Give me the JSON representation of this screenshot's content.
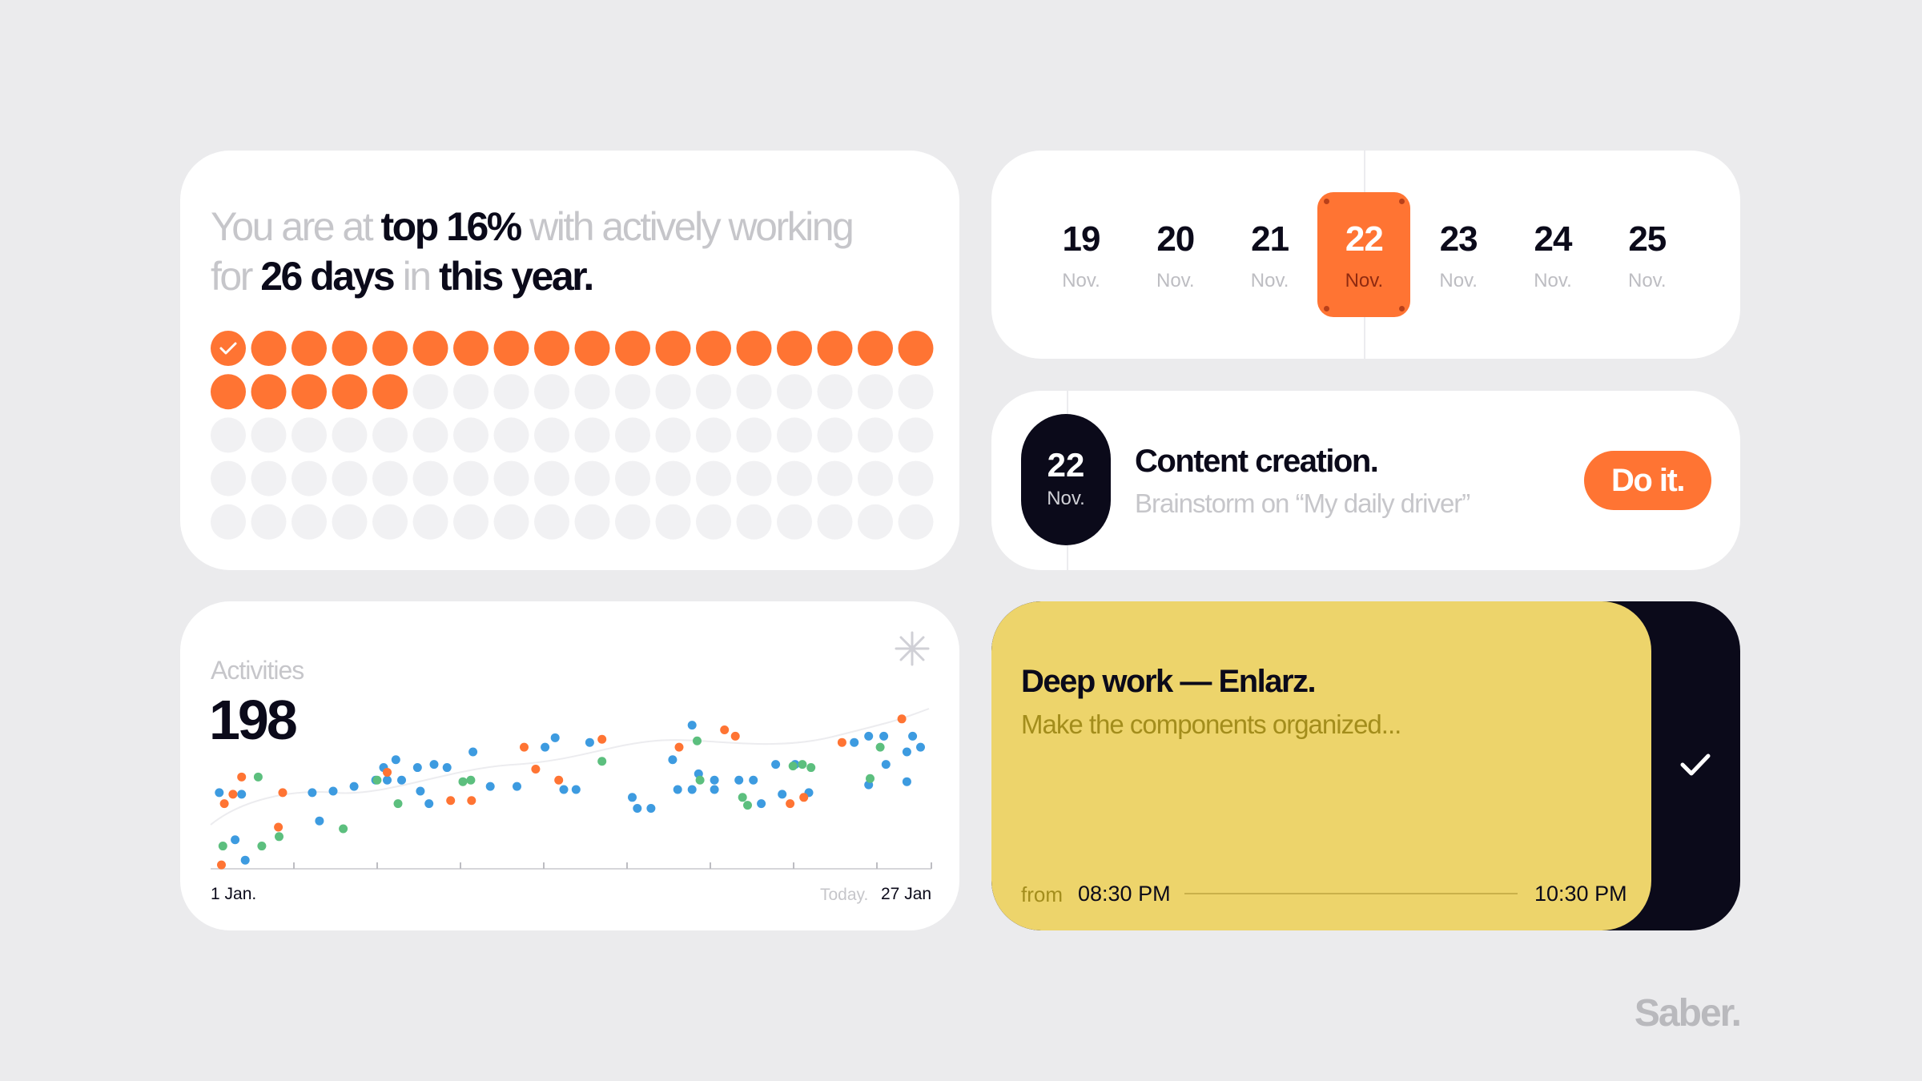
{
  "headline": {
    "lines": [
      [
        {
          "text": "You are at ",
          "strong": false
        },
        {
          "text": "top 16%",
          "strong": true
        },
        {
          "text": " with actively working",
          "strong": false
        }
      ],
      [
        {
          "text": "for ",
          "strong": false
        },
        {
          "text": "26 days",
          "strong": true
        },
        {
          "text": " in ",
          "strong": false
        },
        {
          "text": "this year.",
          "strong": true
        }
      ]
    ]
  },
  "progress": {
    "filled": 23,
    "total": 90,
    "columns": 18
  },
  "calendar": {
    "selected": 3,
    "days": [
      {
        "day": 19,
        "month": "Nov."
      },
      {
        "day": 20,
        "month": "Nov."
      },
      {
        "day": 21,
        "month": "Nov."
      },
      {
        "day": 22,
        "month": "Nov."
      },
      {
        "day": 23,
        "month": "Nov."
      },
      {
        "day": 24,
        "month": "Nov."
      },
      {
        "day": 25,
        "month": "Nov."
      }
    ]
  },
  "task": {
    "badge": {
      "day": 22,
      "month": "Nov."
    },
    "title": "Content creation.",
    "subtitle": "Brainstorm on “My daily driver”",
    "button": "Do it."
  },
  "event": {
    "title": "Deep work — Enlarz.",
    "subtitle": "Make the components organized...",
    "from_label": "from",
    "start": "08:30 PM",
    "end": "10:30 PM"
  },
  "activities": {
    "label": "Activities",
    "total": 198,
    "x_start_label": "1 Jan.",
    "today_label": "Today.",
    "x_end_label": "27 Jan",
    "chart_data": {
      "type": "scatter",
      "xlim": [
        0,
        100
      ],
      "ylim": [
        0,
        100
      ],
      "series": [
        {
          "color": "#3d9be0",
          "x": [
            1.2,
            3.4,
            4.8,
            4.3,
            14.1,
            15.1,
            17.0,
            19.9,
            22.9,
            24.0,
            24.5,
            25.7,
            26.5,
            28.7,
            29.1,
            30.3,
            31.0,
            32.8,
            36.4,
            38.8,
            42.5,
            46.4,
            47.8,
            49.0,
            50.7,
            52.6,
            58.5,
            59.2,
            61.1,
            64.1,
            64.8,
            66.8,
            66.8,
            67.7,
            69.9,
            69.9,
            73.3,
            75.3,
            76.4,
            78.4,
            79.3,
            81.1,
            83.0,
            89.3,
            91.3,
            91.3,
            93.4,
            93.7,
            96.6,
            96.6,
            97.4,
            98.5
          ],
          "values": [
            48,
            18,
            5,
            47,
            48,
            30,
            49,
            52,
            56,
            64,
            56,
            69,
            56,
            64,
            49,
            41,
            66,
            64,
            74,
            52,
            52,
            77,
            83,
            50,
            50,
            80,
            45,
            38,
            38,
            69,
            50,
            91,
            50,
            60,
            56,
            50,
            56,
            56,
            41,
            66,
            47,
            66,
            48,
            80,
            84,
            53,
            84,
            66,
            74,
            55,
            84,
            77
          ]
        },
        {
          "color": "#ff7433",
          "x": [
            1.5,
            1.9,
            3.1,
            4.3,
            9.4,
            10.0,
            24.5,
            33.3,
            36.2,
            43.5,
            45.1,
            48.3,
            54.3,
            65.0,
            71.3,
            72.8,
            80.4,
            82.3,
            87.6,
            95.9
          ],
          "values": [
            2,
            41,
            47,
            58,
            26,
            48,
            61,
            43,
            43,
            77,
            63,
            56,
            82,
            77,
            88,
            84,
            41,
            45,
            80,
            95
          ]
        },
        {
          "color": "#5cbf7e",
          "x": [
            1.7,
            6.6,
            7.1,
            9.5,
            18.4,
            23.1,
            26.0,
            35.0,
            36.1,
            54.3,
            67.5,
            67.9,
            73.8,
            74.5,
            80.8,
            82.1,
            83.3,
            91.5,
            92.9
          ],
          "values": [
            14,
            58,
            14,
            20,
            25,
            56,
            41,
            55,
            56,
            68,
            81,
            56,
            45,
            40,
            65,
            66,
            64,
            57,
            77
          ]
        }
      ]
    }
  },
  "brand": "Saber."
}
